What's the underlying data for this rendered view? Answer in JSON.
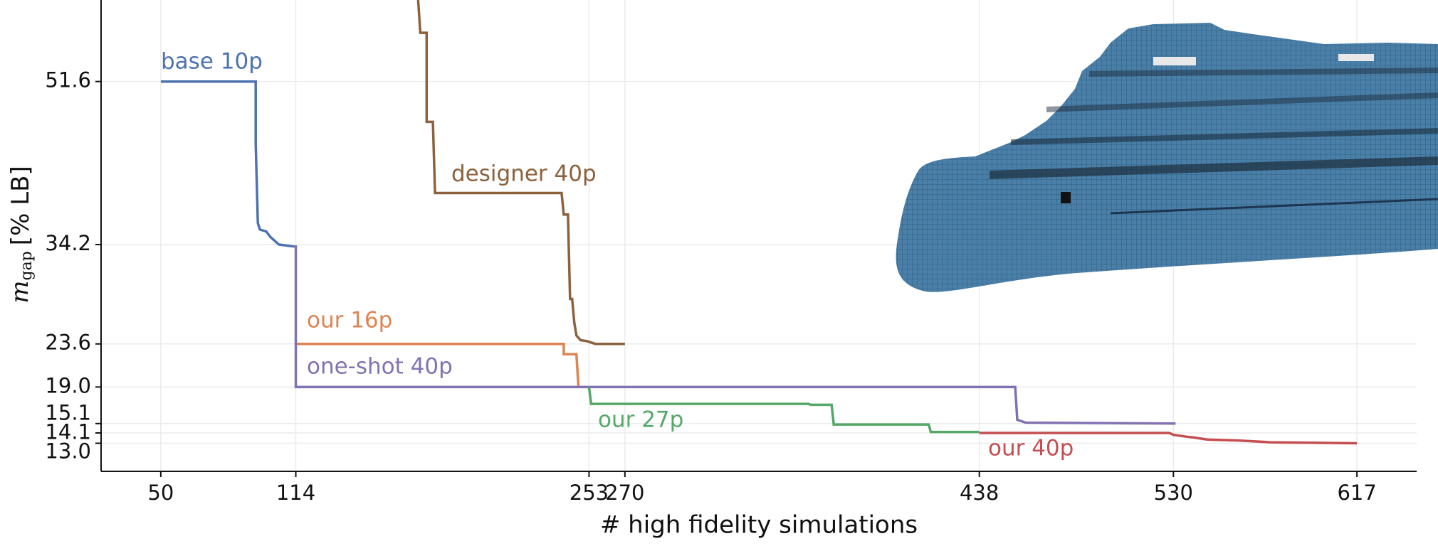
{
  "chart_data": {
    "type": "line",
    "xlabel": "# high fidelity simulations",
    "ylabel": {
      "symbol": "m",
      "subscript": "gap",
      "unit": "[% LB]"
    },
    "xlim": [
      21.7,
      645.3
    ],
    "xticks": [
      50,
      114,
      253,
      270,
      438,
      530,
      617
    ],
    "ylim": [
      10,
      60.3
    ],
    "yticks": [
      {
        "value": 51.6,
        "label": "51.6"
      },
      {
        "value": 34.2,
        "label": "34.2"
      },
      {
        "value": 23.6,
        "label": "23.6"
      },
      {
        "value": 19.0,
        "label": "19.0"
      },
      {
        "value": 15.1,
        "label": "15.1"
      },
      {
        "value": 14.1,
        "label": "14.1"
      },
      {
        "value": 13.0,
        "label": "13.0"
      }
    ],
    "grid": true,
    "series": [
      {
        "name": "base 10p",
        "color": "#4c72b0",
        "x": [
          50,
          95,
          95,
          96,
          97,
          100,
          102,
          104,
          106,
          113
        ],
        "values": [
          51.6,
          51.6,
          45,
          36.5,
          35.8,
          35.6,
          35.0,
          34.6,
          34.2,
          34.0
        ]
      },
      {
        "name": "designer 40p",
        "color": "#8c613c",
        "x": [
          172,
          173,
          176,
          176,
          179,
          180,
          240,
          241,
          243,
          244,
          245,
          246,
          247,
          249,
          252,
          256,
          270
        ],
        "values": [
          60.3,
          56.8,
          56.8,
          47.3,
          47.3,
          39.7,
          39.7,
          37.4,
          37.4,
          28.4,
          28.4,
          25.9,
          24.5,
          24.0,
          23.9,
          23.6,
          23.6
        ]
      },
      {
        "name": "our 16p",
        "color": "#dd8452",
        "x": [
          114,
          241,
          241,
          247,
          248
        ],
        "values": [
          23.6,
          23.6,
          22.5,
          22.5,
          19.0
        ]
      },
      {
        "name": "one-shot 40p",
        "color": "#8172b2",
        "x": [
          113,
          114,
          114,
          455,
          456,
          460,
          531
        ],
        "values": [
          34.0,
          34.0,
          19.0,
          19.0,
          15.5,
          15.2,
          15.1
        ]
      },
      {
        "name": "our 27p",
        "color": "#55a868",
        "x": [
          253,
          254,
          357,
          358,
          368,
          369,
          414,
          415,
          438
        ],
        "values": [
          19.0,
          17.2,
          17.2,
          17.1,
          17.1,
          15.0,
          15.0,
          14.2,
          14.2
        ]
      },
      {
        "name": "our 40p",
        "color": "#c44e52",
        "x": [
          438,
          528,
          530,
          536,
          540,
          546,
          560,
          576,
          617
        ],
        "values": [
          14.1,
          14.1,
          13.9,
          13.7,
          13.6,
          13.4,
          13.3,
          13.1,
          13.0
        ]
      }
    ]
  }
}
